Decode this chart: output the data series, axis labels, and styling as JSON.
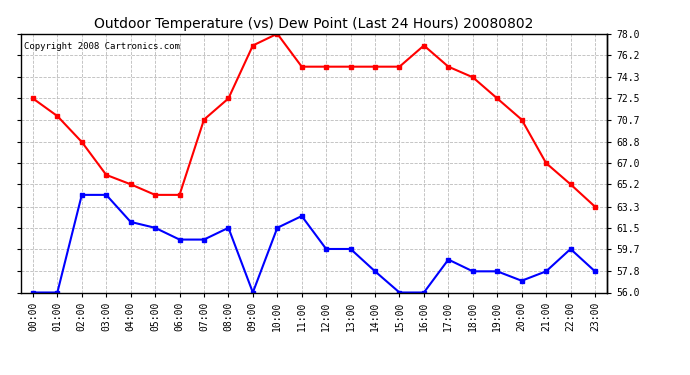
{
  "title": "Outdoor Temperature (vs) Dew Point (Last 24 Hours) 20080802",
  "copyright_text": "Copyright 2008 Cartronics.com",
  "x_labels": [
    "00:00",
    "01:00",
    "02:00",
    "03:00",
    "04:00",
    "05:00",
    "06:00",
    "07:00",
    "08:00",
    "09:00",
    "10:00",
    "11:00",
    "12:00",
    "13:00",
    "14:00",
    "15:00",
    "16:00",
    "17:00",
    "18:00",
    "19:00",
    "20:00",
    "21:00",
    "22:00",
    "23:00"
  ],
  "temp_data": [
    72.5,
    71.0,
    68.8,
    66.0,
    65.2,
    64.3,
    64.3,
    70.7,
    72.5,
    77.0,
    78.0,
    75.2,
    75.2,
    75.2,
    75.2,
    75.2,
    77.0,
    75.2,
    74.3,
    72.5,
    70.7,
    67.0,
    65.2,
    63.3
  ],
  "dew_data": [
    56.0,
    56.0,
    64.3,
    64.3,
    62.0,
    61.5,
    60.5,
    60.5,
    61.5,
    56.0,
    61.5,
    62.5,
    59.7,
    59.7,
    57.8,
    56.0,
    56.0,
    58.8,
    57.8,
    57.8,
    57.0,
    57.8,
    59.7,
    57.8
  ],
  "temp_color": "#ff0000",
  "dew_color": "#0000ff",
  "bg_color": "#ffffff",
  "grid_color": "#bbbbbb",
  "y_min": 56.0,
  "y_max": 78.0,
  "y_ticks": [
    56.0,
    57.8,
    59.7,
    61.5,
    63.3,
    65.2,
    67.0,
    68.8,
    70.7,
    72.5,
    74.3,
    76.2,
    78.0
  ],
  "title_fontsize": 10,
  "copyright_fontsize": 6.5,
  "tick_fontsize": 7,
  "line_width": 1.5,
  "marker": "s",
  "marker_size": 3
}
